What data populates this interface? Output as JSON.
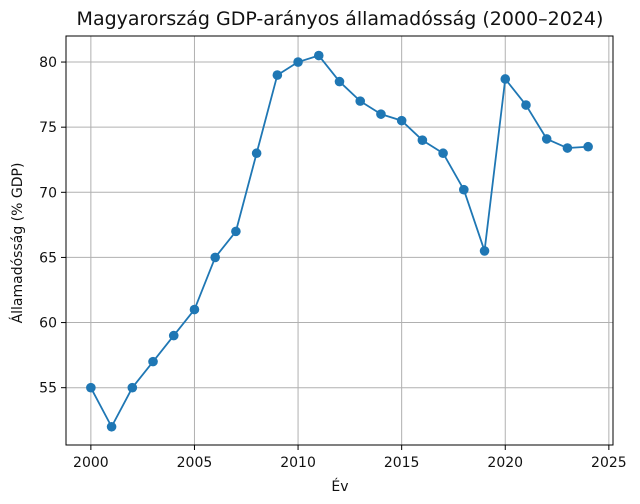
{
  "chart_data": {
    "type": "line",
    "title": "Magyarország GDP-arányos államadósság (2000–2024)",
    "xlabel": "Év",
    "ylabel": "Államadósság (% GDP)",
    "x": [
      2000,
      2001,
      2002,
      2003,
      2004,
      2005,
      2006,
      2007,
      2008,
      2009,
      2010,
      2011,
      2012,
      2013,
      2014,
      2015,
      2016,
      2017,
      2018,
      2019,
      2020,
      2021,
      2022,
      2023,
      2024
    ],
    "series": [
      {
        "values": [
          55,
          52,
          55,
          57,
          59,
          61,
          65,
          67,
          73,
          79,
          80,
          80.5,
          78.5,
          77,
          76,
          75.5,
          74,
          73,
          70.2,
          65.5,
          78.7,
          76.7,
          74.1,
          73.4,
          73.5
        ],
        "color": "#1f77b4"
      }
    ],
    "xlim": [
      1998.8,
      2025.2
    ],
    "ylim": [
      50.6,
      82
    ],
    "xticks": [
      2000,
      2005,
      2010,
      2015,
      2020,
      2025
    ],
    "yticks": [
      55,
      60,
      65,
      70,
      75,
      80
    ],
    "grid": true,
    "legend": "none",
    "marker": "circle"
  }
}
